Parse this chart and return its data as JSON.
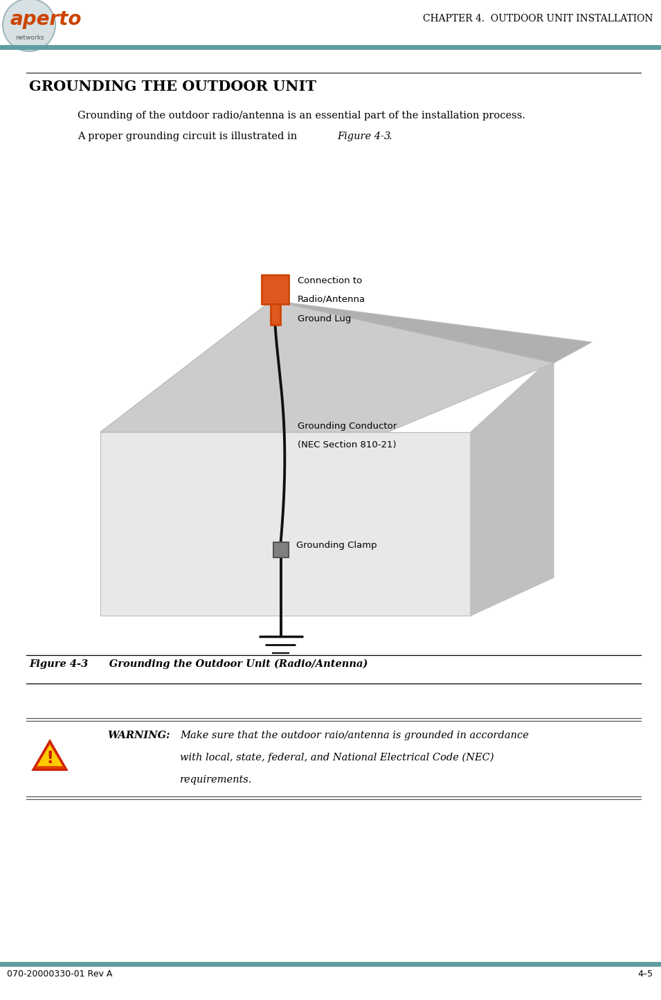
{
  "page_width": 9.55,
  "page_height": 14.44,
  "dpi": 100,
  "bg_color": "#ffffff",
  "header_line_color": "#5f9ea0",
  "header_text": "CHAPTER 4.  OUTDOOR UNIT INSTALLATION",
  "header_text_color": "#000000",
  "header_font_size": 10,
  "section_title": "GROUNDING THE OUTDOOR UNIT",
  "section_title_font_size": 15,
  "body_text_line1": "Grounding of the outdoor radio/antenna is an essential part of the installation process.",
  "body_text_line2_prefix": "A proper grounding circuit is illustrated in ",
  "body_text_line2_italic": "Figure 4-3",
  "body_text_line2_suffix": ".",
  "body_font_size": 10.5,
  "figure_caption_num": "Figure 4-3",
  "figure_caption_rest": "      Grounding the Outdoor Unit (Radio/Antenna)",
  "figure_caption_font_size": 10.5,
  "warning_label": "WARNING:",
  "warning_text_line1": "Make sure that the outdoor raio/antenna is grounded in accordance",
  "warning_text_line2": "with local, state, federal, and National Electrical Code (NEC)",
  "warning_text_line3": "requirements.",
  "warning_font_size": 10.5,
  "footer_text_left": "070-20000330-01 Rev A",
  "footer_text_right": "4–5",
  "footer_font_size": 9,
  "house_wall_color": "#e8e8e8",
  "house_wall_color2": "#f0f0f0",
  "house_roof_color": "#cccccc",
  "house_roof_left_color": "#e0e0e0",
  "house_side_color": "#c0c0c0",
  "antenna_orange": "#e05820",
  "antenna_dark": "#cc4400",
  "cable_color": "#111111",
  "clamp_color": "#808080",
  "ground_color": "#111111",
  "label_font_size": 9.5
}
